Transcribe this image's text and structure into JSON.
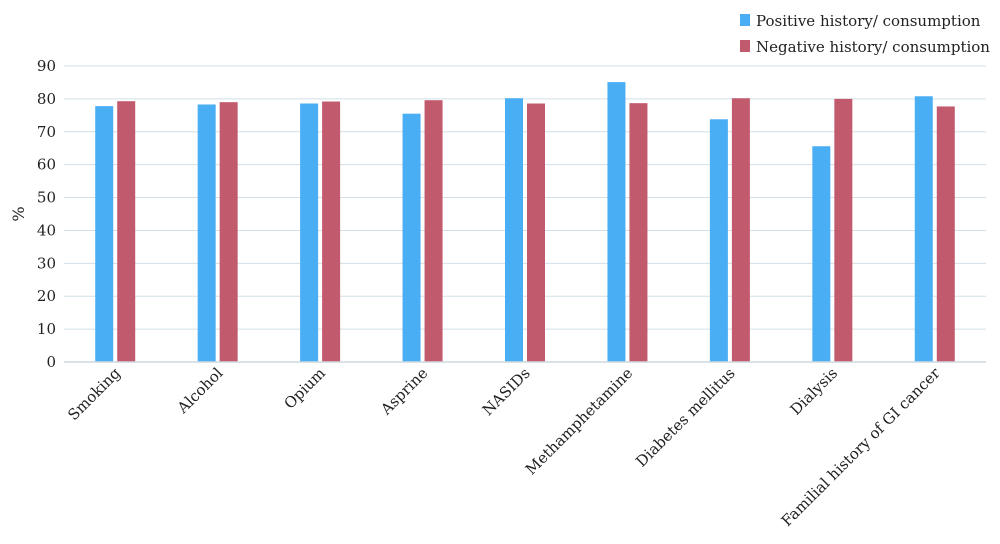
{
  "chart_data": {
    "type": "bar",
    "ylabel": "%",
    "xlabel": "",
    "ylim": [
      0,
      90
    ],
    "yticks": [
      0,
      10,
      20,
      30,
      40,
      50,
      60,
      70,
      80,
      90
    ],
    "grid": true,
    "legend_position": "top-right",
    "categories": [
      "Smoking",
      "Alcohol",
      "Opium",
      "Asprine",
      "NASIDs",
      "Methamphetamine",
      "Diabetes mellitus",
      "Dialysis",
      "Familial history of GI cancer"
    ],
    "series": [
      {
        "name": "Positive history/ consumption",
        "color": "#4aaef5",
        "values": [
          77.8,
          78.3,
          78.6,
          75.5,
          80.2,
          85.1,
          73.8,
          65.6,
          80.8
        ]
      },
      {
        "name": "Negative history/ consumption",
        "color": "#c25a6e",
        "values": [
          79.3,
          79.0,
          79.2,
          79.6,
          78.6,
          78.7,
          80.2,
          80.0,
          77.7
        ]
      }
    ]
  }
}
